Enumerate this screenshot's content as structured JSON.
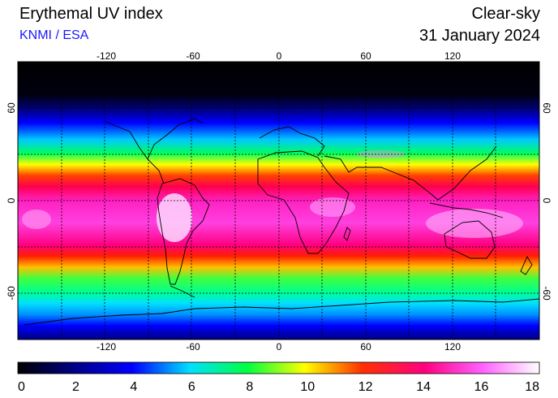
{
  "header": {
    "title": "Erythemal UV index",
    "credit": "KNMI / ESA",
    "condition": "Clear-sky",
    "date": "31 January 2024"
  },
  "map": {
    "lon_ticks": [
      "-120",
      "-60",
      "0",
      "60",
      "120"
    ],
    "lat_ticks": [
      "60",
      "0",
      "-60"
    ]
  },
  "colorbar": {
    "ticks": [
      "0",
      "2",
      "4",
      "6",
      "8",
      "10",
      "12",
      "14",
      "16",
      "18"
    ],
    "range": [
      0,
      18
    ]
  }
}
